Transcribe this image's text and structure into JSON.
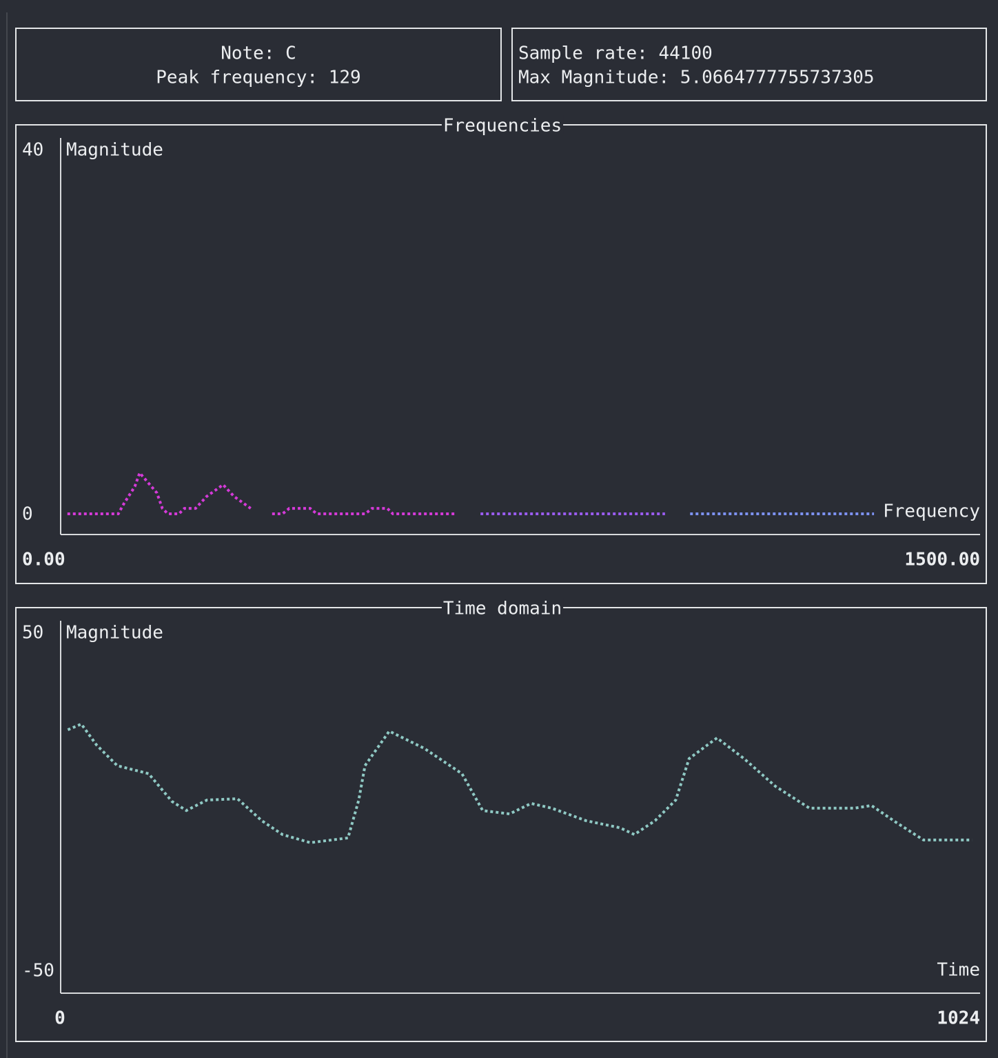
{
  "panels": [
    {
      "lines": [
        "Note: C",
        "Peak frequency: 129"
      ]
    },
    {
      "lines": [
        "Sample rate: 44100",
        "Max Magnitude: 5.0664777755737305"
      ]
    }
  ],
  "chart_data": [
    {
      "type": "line",
      "title": "Frequencies",
      "y_label": "Magnitude",
      "x_label": "Frequency",
      "xlim": [
        0,
        1500
      ],
      "ylim": [
        0,
        40
      ],
      "xticks": [
        {
          "value": 0,
          "label": "0.00"
        },
        {
          "value": 1500,
          "label": "1500.00"
        }
      ],
      "yticks": [
        0,
        40
      ],
      "series": [
        {
          "color": "#d43ad8",
          "x": [
            11,
            94,
            103,
            121,
            129,
            157,
            166,
            175,
            193,
            202,
            220,
            238,
            265,
            283,
            310,
            328,
            345,
            362,
            373,
            407,
            418,
            497,
            508,
            533,
            542,
            643
          ],
          "values": [
            0,
            0,
            1.1,
            3.0,
            4.5,
            2.3,
            0.6,
            0,
            0,
            0.6,
            0.6,
            1.9,
            3.2,
            1.9,
            0.6,
            null,
            0,
            0,
            0.6,
            0.6,
            0,
            0,
            0.6,
            0.6,
            0,
            0
          ]
        },
        {
          "color": "#9a5cf0",
          "x": [
            685,
            986
          ],
          "values": [
            0,
            0
          ]
        },
        {
          "color": "#7d92f2",
          "x": [
            1027,
            1327
          ],
          "values": [
            0,
            0
          ]
        }
      ]
    },
    {
      "type": "line",
      "title": "Time domain",
      "y_label": "Magnitude",
      "x_label": "Time",
      "xlim": [
        0,
        1024
      ],
      "ylim": [
        -50,
        50
      ],
      "xticks": [
        0,
        1024
      ],
      "yticks": [
        -50,
        50
      ],
      "series": [
        {
          "color": "#8fc9c4",
          "x": [
            8,
            23,
            40,
            63,
            98,
            124,
            140,
            163,
            197,
            224,
            247,
            278,
            320,
            332,
            339,
            366,
            405,
            447,
            470,
            500,
            524,
            547,
            585,
            623,
            639,
            662,
            685,
            700,
            731,
            761,
            796,
            834,
            884,
            903,
            930,
            961,
            1015
          ],
          "values": [
            21.2,
            22.9,
            16.7,
            10.6,
            8.2,
            0,
            -2.7,
            0.4,
            0.8,
            -5.7,
            -9.8,
            -12.2,
            -10.8,
            0.4,
            10.6,
            20.8,
            15.7,
            8.2,
            -2.7,
            -3.7,
            -0.6,
            -2,
            -5.7,
            -7.8,
            -9.8,
            -5.7,
            0.4,
            12.7,
            18.8,
            12.7,
            4.5,
            -2,
            -2,
            -1.2,
            -6.1,
            -11.4,
            -11.4
          ]
        }
      ]
    }
  ]
}
